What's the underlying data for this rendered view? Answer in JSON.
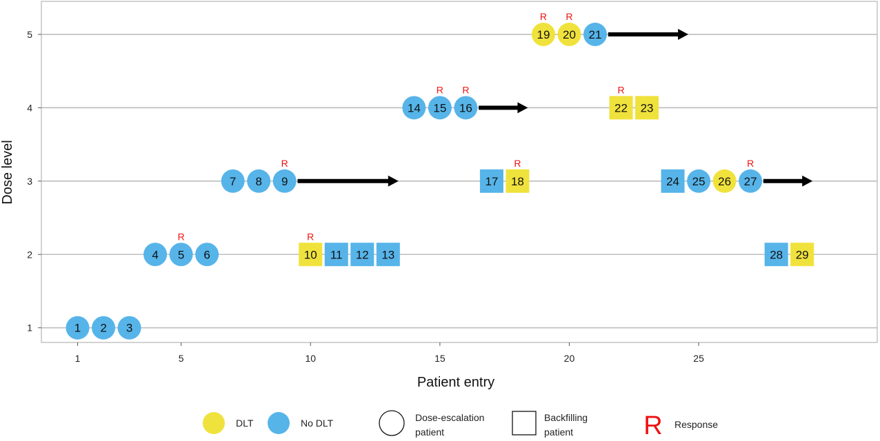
{
  "chart_data": {
    "type": "scatter",
    "xlabel": "Patient entry",
    "ylabel": "Dose level",
    "xlim": [
      -0.4,
      31.9
    ],
    "ylim": [
      0.8,
      5.45
    ],
    "x_ticks": [
      1,
      5,
      10,
      15,
      20,
      25
    ],
    "y_ticks": [
      1,
      2,
      3,
      4,
      5
    ],
    "grid": true,
    "colors": {
      "dlt": "#f0e23c",
      "no_dlt": "#56b4e9",
      "response": "#ee1111",
      "arrow": "#000000"
    },
    "patients": [
      {
        "id": "1",
        "x": 1,
        "dose": 1,
        "dlt": false,
        "shape": "circle",
        "response": false
      },
      {
        "id": "2",
        "x": 2,
        "dose": 1,
        "dlt": false,
        "shape": "circle",
        "response": false
      },
      {
        "id": "3",
        "x": 3,
        "dose": 1,
        "dlt": false,
        "shape": "circle",
        "response": false
      },
      {
        "id": "4",
        "x": 4,
        "dose": 2,
        "dlt": false,
        "shape": "circle",
        "response": false
      },
      {
        "id": "5",
        "x": 5,
        "dose": 2,
        "dlt": false,
        "shape": "circle",
        "response": true
      },
      {
        "id": "6",
        "x": 6,
        "dose": 2,
        "dlt": false,
        "shape": "circle",
        "response": false
      },
      {
        "id": "7",
        "x": 7,
        "dose": 3,
        "dlt": false,
        "shape": "circle",
        "response": false
      },
      {
        "id": "8",
        "x": 8,
        "dose": 3,
        "dlt": false,
        "shape": "circle",
        "response": false
      },
      {
        "id": "9",
        "x": 9,
        "dose": 3,
        "dlt": false,
        "shape": "circle",
        "response": true
      },
      {
        "id": "10",
        "x": 10,
        "dose": 2,
        "dlt": true,
        "shape": "square",
        "response": true
      },
      {
        "id": "11",
        "x": 11,
        "dose": 2,
        "dlt": false,
        "shape": "square",
        "response": false
      },
      {
        "id": "12",
        "x": 12,
        "dose": 2,
        "dlt": false,
        "shape": "square",
        "response": false
      },
      {
        "id": "13",
        "x": 13,
        "dose": 2,
        "dlt": false,
        "shape": "square",
        "response": false
      },
      {
        "id": "14",
        "x": 14,
        "dose": 4,
        "dlt": false,
        "shape": "circle",
        "response": false
      },
      {
        "id": "15",
        "x": 15,
        "dose": 4,
        "dlt": false,
        "shape": "circle",
        "response": true
      },
      {
        "id": "16",
        "x": 16,
        "dose": 4,
        "dlt": false,
        "shape": "circle",
        "response": true
      },
      {
        "id": "17",
        "x": 17,
        "dose": 3,
        "dlt": false,
        "shape": "square",
        "response": false
      },
      {
        "id": "18",
        "x": 18,
        "dose": 3,
        "dlt": true,
        "shape": "square",
        "response": true
      },
      {
        "id": "19",
        "x": 19,
        "dose": 5,
        "dlt": true,
        "shape": "circle",
        "response": true
      },
      {
        "id": "20",
        "x": 20,
        "dose": 5,
        "dlt": true,
        "shape": "circle",
        "response": true
      },
      {
        "id": "21",
        "x": 21,
        "dose": 5,
        "dlt": false,
        "shape": "circle",
        "response": false
      },
      {
        "id": "22",
        "x": 22,
        "dose": 4,
        "dlt": true,
        "shape": "square",
        "response": true
      },
      {
        "id": "23",
        "x": 23,
        "dose": 4,
        "dlt": true,
        "shape": "square",
        "response": false
      },
      {
        "id": "24",
        "x": 24,
        "dose": 3,
        "dlt": false,
        "shape": "square",
        "response": false
      },
      {
        "id": "25",
        "x": 25,
        "dose": 3,
        "dlt": false,
        "shape": "circle",
        "response": false
      },
      {
        "id": "26",
        "x": 26,
        "dose": 3,
        "dlt": true,
        "shape": "circle",
        "response": false
      },
      {
        "id": "27",
        "x": 27,
        "dose": 3,
        "dlt": false,
        "shape": "circle",
        "response": true
      },
      {
        "id": "28",
        "x": 28,
        "dose": 2,
        "dlt": false,
        "shape": "square",
        "response": false
      },
      {
        "id": "29",
        "x": 29,
        "dose": 2,
        "dlt": true,
        "shape": "square",
        "response": false
      }
    ],
    "arrows": [
      {
        "dose": 5,
        "x_start": 21.5,
        "x_end": 24.6
      },
      {
        "dose": 4,
        "x_start": 16.5,
        "x_end": 18.4
      },
      {
        "dose": 3,
        "x_start": 9.5,
        "x_end": 13.4
      },
      {
        "dose": 3,
        "x_start": 27.5,
        "x_end": 29.4
      }
    ],
    "response_marker": "R",
    "legend": {
      "position": "bottom",
      "dlt": "DLT",
      "no_dlt": "No DLT",
      "escalation_line1": "Dose-escalation",
      "escalation_line2": "patient",
      "backfill_line1": "Backfilling",
      "backfill_line2": "patient",
      "response_symbol": "R",
      "response_label": "Response"
    }
  }
}
